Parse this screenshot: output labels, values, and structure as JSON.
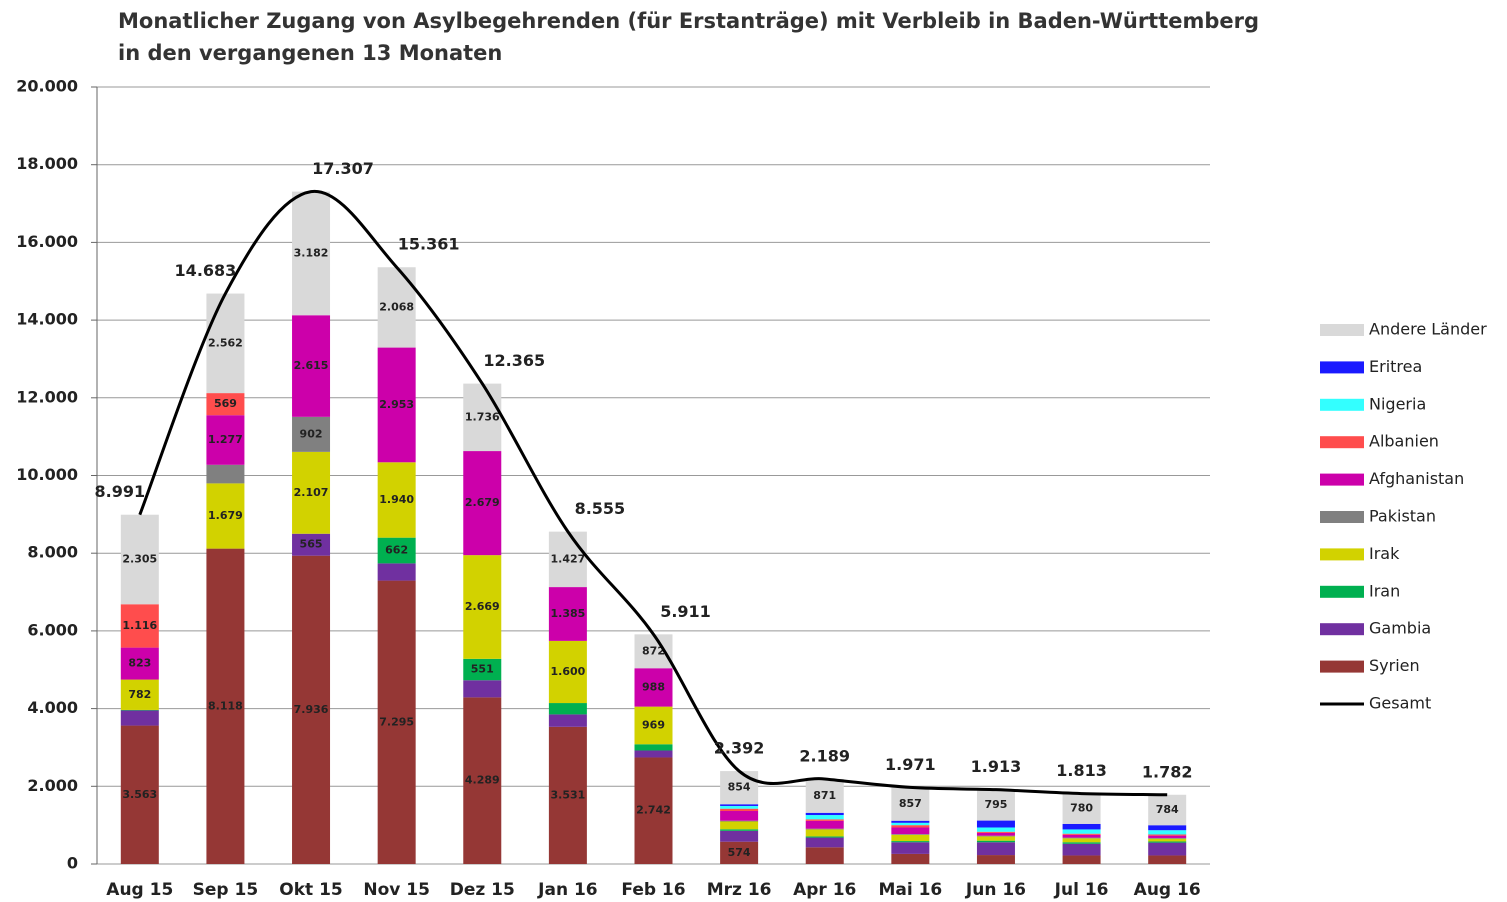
{
  "chart_data": {
    "type": "bar",
    "stacked": true,
    "title": [
      "Monatlicher Zugang von Asylbegehrenden (für Erstanträge) mit Verbleib in Baden-Württemberg",
      "in den vergangenen 13 Monaten"
    ],
    "categories": [
      "Aug 15",
      "Sep 15",
      "Okt 15",
      "Nov 15",
      "Dez 15",
      "Jan 16",
      "Feb 16",
      "Mrz 16",
      "Apr 16",
      "Mai 16",
      "Jun 16",
      "Jul 16",
      "Aug 16"
    ],
    "ylim": [
      0,
      20000
    ],
    "yticks": [
      0,
      {
        "value": 2000,
        "label": "2.000"
      },
      {
        "value": 4000,
        "label": "4.000"
      },
      {
        "value": 6000,
        "label": "6.000"
      },
      {
        "value": 8000,
        "label": "8.000"
      },
      {
        "value": 10000,
        "label": "10.000"
      },
      {
        "value": 12000,
        "label": "12.000"
      },
      {
        "value": 14000,
        "label": "14.000"
      },
      {
        "value": 16000,
        "label": "16.000"
      },
      {
        "value": 18000,
        "label": "18.000"
      },
      {
        "value": 20000,
        "label": "20.000"
      }
    ],
    "grid": true,
    "legend": "right",
    "series": [
      {
        "name": "Syrien",
        "color": "#953735",
        "values": [
          3563,
          8118,
          7936,
          7295,
          4289,
          3531,
          2742,
          574,
          430,
          260,
          230,
          220,
          220
        ],
        "value_labels": [
          "3.563",
          "8.118",
          "7.936",
          "7.295",
          "4.289",
          "3.531",
          "2.742",
          "574",
          null,
          null,
          null,
          null,
          null
        ]
      },
      {
        "name": "Gambia",
        "color": "#7030a0",
        "values": [
          390,
          0,
          565,
          443,
          441,
          320,
          180,
          280,
          250,
          300,
          330,
          300,
          330
        ],
        "value_labels": [
          null,
          null,
          "565",
          null,
          null,
          null,
          null,
          null,
          null,
          null,
          null,
          null,
          null
        ]
      },
      {
        "name": "Iran",
        "color": "#00b050",
        "values": [
          12,
          0,
          0,
          662,
          551,
          292,
          160,
          40,
          30,
          30,
          40,
          40,
          30
        ],
        "value_labels": [
          null,
          null,
          null,
          "662",
          "551",
          null,
          null,
          null,
          null,
          null,
          null,
          null,
          null
        ]
      },
      {
        "name": "Irak",
        "color": "#d2d200",
        "values": [
          782,
          1679,
          2107,
          1940,
          2669,
          1600,
          969,
          200,
          180,
          160,
          110,
          100,
          70
        ],
        "value_labels": [
          "782",
          "1.679",
          "2.107",
          "1.940",
          "2.669",
          "1.600",
          "969",
          null,
          null,
          null,
          null,
          null,
          null
        ]
      },
      {
        "name": "Pakistan",
        "color": "#808080",
        "values": [
          0,
          478,
          902,
          0,
          0,
          0,
          0,
          20,
          20,
          20,
          20,
          20,
          20
        ],
        "value_labels": [
          null,
          null,
          "902",
          null,
          null,
          null,
          null,
          null,
          null,
          null,
          null,
          null,
          null
        ]
      },
      {
        "name": "Afghanistan",
        "color": "#cc00aa",
        "values": [
          823,
          1277,
          2615,
          2953,
          2679,
          1385,
          988,
          250,
          200,
          170,
          70,
          70,
          60
        ],
        "value_labels": [
          "823",
          "1.277",
          "2.615",
          "2.953",
          "2.679",
          "1.385",
          "988",
          null,
          null,
          null,
          null,
          null,
          null
        ]
      },
      {
        "name": "Albanien",
        "color": "#ff4d4d",
        "values": [
          1116,
          569,
          0,
          0,
          0,
          0,
          0,
          60,
          40,
          60,
          30,
          30,
          30
        ],
        "value_labels": [
          "1.116",
          "569",
          null,
          null,
          null,
          null,
          null,
          null,
          null,
          null,
          null,
          null,
          null
        ]
      },
      {
        "name": "Nigeria",
        "color": "#33ffff",
        "values": [
          0,
          0,
          0,
          0,
          0,
          0,
          0,
          70,
          110,
          60,
          110,
          110,
          110
        ]
      },
      {
        "name": "Eritrea",
        "color": "#1a1aff",
        "values": [
          0,
          0,
          0,
          0,
          0,
          0,
          0,
          44,
          58,
          54,
          178,
          143,
          128
        ]
      },
      {
        "name": "Andere Länder",
        "color": "#d9d9d9",
        "values": [
          2305,
          2562,
          3182,
          2068,
          1736,
          1427,
          872,
          854,
          871,
          857,
          795,
          780,
          784
        ],
        "value_labels": [
          "2.305",
          "2.562",
          "3.182",
          "2.068",
          "1.736",
          "1.427",
          "872",
          "854",
          "871",
          "857",
          "795",
          "780",
          "784"
        ]
      },
      {
        "name": "Gesamt",
        "type": "line",
        "color": "#000000",
        "values": [
          8991,
          14683,
          17307,
          15361,
          12365,
          8555,
          5911,
          2392,
          2189,
          1971,
          1913,
          1813,
          1782
        ],
        "value_labels": [
          "8.991",
          "14.683",
          "17.307",
          "15.361",
          "12.365",
          "8.555",
          "5.911",
          "2.392",
          "2.189",
          "1.971",
          "1.913",
          "1.813",
          "1.782"
        ]
      }
    ]
  }
}
